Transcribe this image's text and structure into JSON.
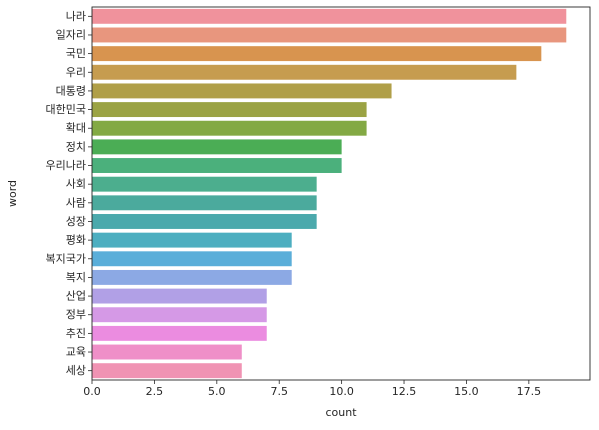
{
  "chart_data": {
    "type": "bar",
    "orientation": "horizontal",
    "xlabel": "count",
    "ylabel": "word",
    "xlim": [
      0,
      19.95
    ],
    "xticks": [
      0.0,
      2.5,
      5.0,
      7.5,
      10.0,
      12.5,
      15.0,
      17.5
    ],
    "xtick_labels": [
      "0.0",
      "2.5",
      "5.0",
      "7.5",
      "10.0",
      "12.5",
      "15.0",
      "17.5"
    ],
    "grid": false,
    "categories": [
      "나라",
      "일자리",
      "국민",
      "우리",
      "대통령",
      "대한민국",
      "확대",
      "정치",
      "우리나라",
      "사회",
      "사람",
      "성장",
      "평화",
      "복지국가",
      "복지",
      "산업",
      "정부",
      "추진",
      "교육",
      "세상"
    ],
    "values": [
      19,
      19,
      18,
      17,
      12,
      11,
      11,
      10,
      10,
      9,
      9,
      9,
      8,
      8,
      8,
      7,
      7,
      7,
      6,
      6
    ],
    "colors": [
      "#f0929c",
      "#e8967e",
      "#d8944f",
      "#c69c4f",
      "#b09f48",
      "#9ba344",
      "#83a944",
      "#4bad55",
      "#4bb07c",
      "#4cae8e",
      "#4baa9d",
      "#4ba9ac",
      "#4caec0",
      "#5aaed9",
      "#8ca9e4",
      "#b1a0e6",
      "#d599e6",
      "#eb8ce0",
      "#ef8fc8",
      "#f093b3"
    ]
  }
}
